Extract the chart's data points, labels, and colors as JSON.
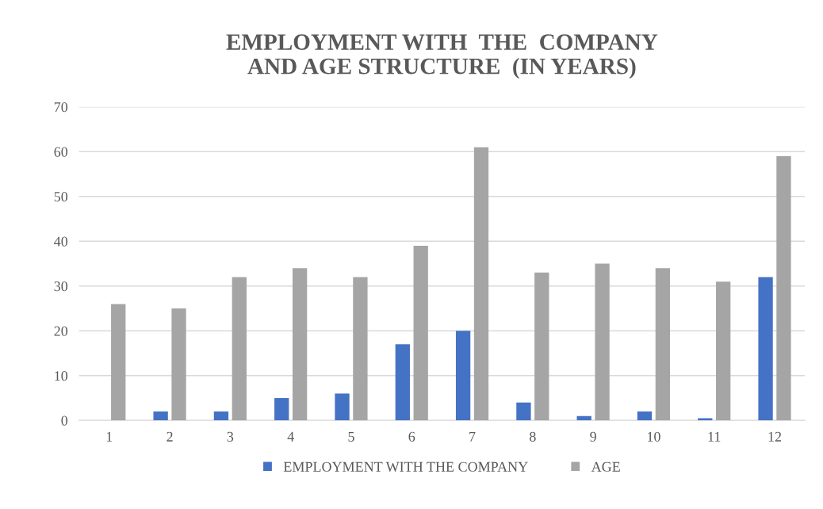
{
  "chart_data": {
    "type": "bar",
    "title": "EMPLOYMENT WITH  THE  COMPANY\nAND AGE STRUCTURE  (IN YEARS)",
    "categories": [
      "1",
      "2",
      "3",
      "4",
      "5",
      "6",
      "7",
      "8",
      "9",
      "10",
      "11",
      "12"
    ],
    "series": [
      {
        "name": "EMPLOYMENT WITH THE COMPANY",
        "color": "#4472c4",
        "values": [
          0,
          2,
          2,
          5,
          6,
          17,
          20,
          4,
          1,
          2,
          0.5,
          32
        ]
      },
      {
        "name": "AGE",
        "color": "#a5a5a5",
        "values": [
          26,
          25,
          32,
          34,
          32,
          39,
          61,
          33,
          35,
          34,
          31,
          59
        ]
      }
    ],
    "ylim": [
      0,
      70
    ],
    "yticks": [
      0,
      10,
      20,
      30,
      40,
      50,
      60,
      70
    ],
    "grid": "y",
    "legend": "bottom"
  }
}
